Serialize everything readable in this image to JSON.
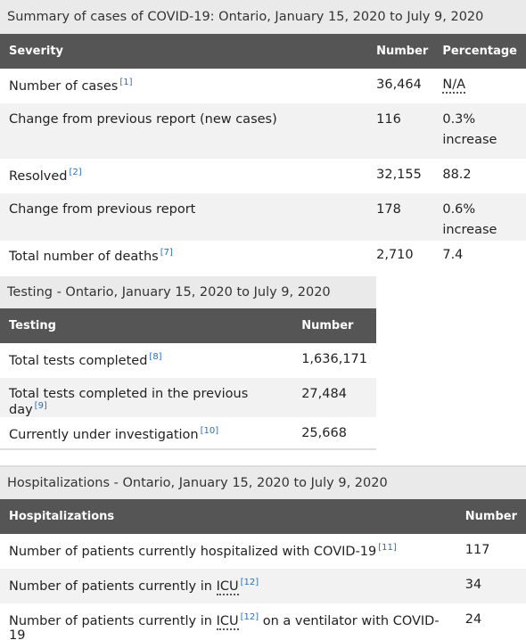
{
  "summary": {
    "caption": "Summary of cases of COVID-19: Ontario, January 15, 2020 to July 9, 2020",
    "headers": [
      "Severity",
      "Number",
      "Percentage"
    ],
    "rows": [
      {
        "label": "Number of cases",
        "ref": "[1]",
        "number": "36,464",
        "percent": "N/A"
      },
      {
        "label": "Change from previous report (new cases)",
        "ref": "",
        "number": "116",
        "percent": "0.3% increase"
      },
      {
        "label": "Resolved",
        "ref": "[2]",
        "number": "32,155",
        "percent": "88.2"
      },
      {
        "label": "Change from previous report",
        "ref": "",
        "number": "178",
        "percent": "0.6% increase"
      },
      {
        "label": "Total number of deaths",
        "ref": "[7]",
        "number": "2,710",
        "percent": "7.4"
      }
    ]
  },
  "testing": {
    "caption_bold": "Testing",
    "caption_rest": " - Ontario, January 15, 2020 to July 9, 2020",
    "headers": [
      "Testing",
      "Number"
    ],
    "rows": [
      {
        "label": "Total tests completed",
        "ref": "[8]",
        "number": "1,636,171"
      },
      {
        "label": "Total tests completed in the previous day",
        "ref": "[9]",
        "number": "27,484"
      },
      {
        "label": "Currently under investigation",
        "ref": "[10]",
        "number": "25,668"
      }
    ]
  },
  "hospitalizations": {
    "caption_bold": "Hospitalizations",
    "caption_rest": " - Ontario, January 15, 2020 to July 9, 2020",
    "headers": [
      "Hospitalizations",
      "Number"
    ],
    "rows": [
      {
        "label_pre": "Number of patients currently hospitalized with COVID-19",
        "abbr": "",
        "ref": "[11]",
        "label_post": "",
        "number": "117"
      },
      {
        "label_pre": "Number of patients currently in ",
        "abbr": "ICU",
        "ref": "[12]",
        "label_post": "",
        "number": "34"
      },
      {
        "label_pre": "Number of patients currently in ",
        "abbr": "ICU",
        "ref": "[12]",
        "label_post": " on a ventilator with COVID-19",
        "number": "24"
      }
    ]
  }
}
